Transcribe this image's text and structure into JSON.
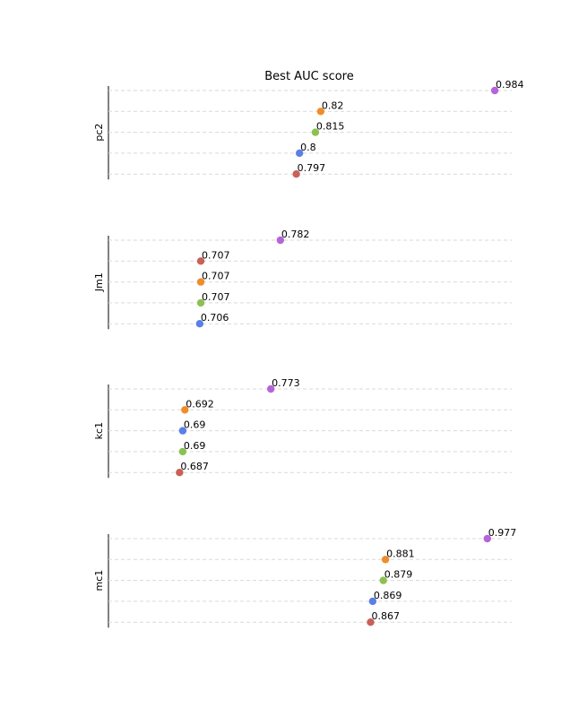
{
  "chart_data": {
    "type": "scatter",
    "title": "Best AUC score",
    "xlim": [
      0.62,
      1.0
    ],
    "grid": true,
    "panels": [
      {
        "label": "pc2",
        "points": [
          {
            "value": 0.984,
            "label": "0.984",
            "color": "#b565d9"
          },
          {
            "value": 0.82,
            "label": "0.82",
            "color": "#f08c2a"
          },
          {
            "value": 0.815,
            "label": "0.815",
            "color": "#8cc152"
          },
          {
            "value": 0.8,
            "label": "0.8",
            "color": "#5b7fe8"
          },
          {
            "value": 0.797,
            "label": "0.797",
            "color": "#c9605a"
          }
        ]
      },
      {
        "label": "Jm1",
        "points": [
          {
            "value": 0.782,
            "label": "0.782",
            "color": "#b565d9"
          },
          {
            "value": 0.707,
            "label": "0.707",
            "color": "#c9605a"
          },
          {
            "value": 0.707,
            "label": "0.707",
            "color": "#f08c2a"
          },
          {
            "value": 0.707,
            "label": "0.707",
            "color": "#8cc152"
          },
          {
            "value": 0.706,
            "label": "0.706",
            "color": "#5b7fe8"
          }
        ]
      },
      {
        "label": "kc1",
        "points": [
          {
            "value": 0.773,
            "label": "0.773",
            "color": "#b565d9"
          },
          {
            "value": 0.692,
            "label": "0.692",
            "color": "#f08c2a"
          },
          {
            "value": 0.69,
            "label": "0.69",
            "color": "#5b7fe8"
          },
          {
            "value": 0.69,
            "label": "0.69",
            "color": "#8cc152"
          },
          {
            "value": 0.687,
            "label": "0.687",
            "color": "#c9605a"
          }
        ]
      },
      {
        "label": "mc1",
        "points": [
          {
            "value": 0.977,
            "label": "0.977",
            "color": "#b565d9"
          },
          {
            "value": 0.881,
            "label": "0.881",
            "color": "#f08c2a"
          },
          {
            "value": 0.879,
            "label": "0.879",
            "color": "#8cc152"
          },
          {
            "value": 0.869,
            "label": "0.869",
            "color": "#5b7fe8"
          },
          {
            "value": 0.867,
            "label": "0.867",
            "color": "#c9605a"
          }
        ]
      }
    ]
  }
}
